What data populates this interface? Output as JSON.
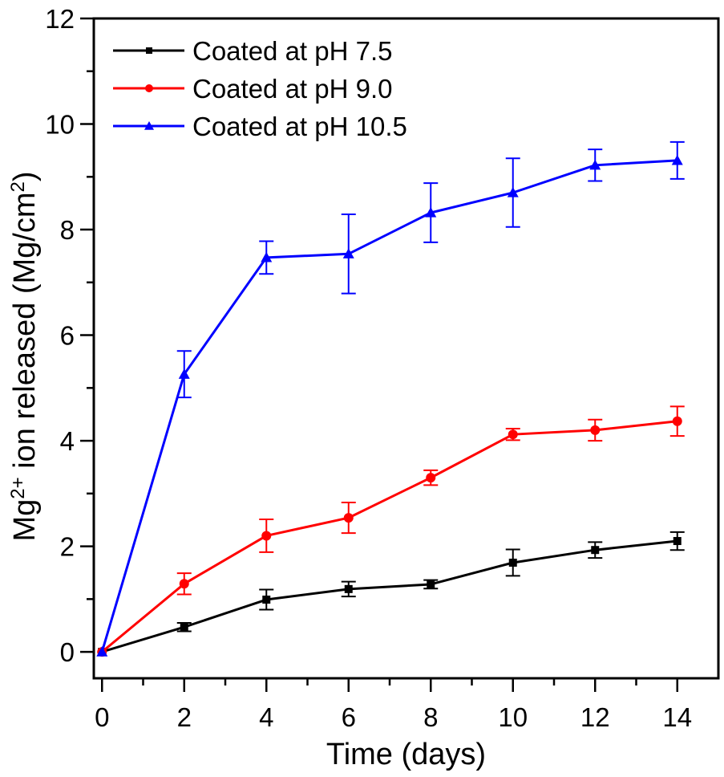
{
  "chart_data": {
    "type": "line",
    "title": "",
    "xlabel": "Time (days)",
    "ylabel": {
      "prefix": "Mg",
      "sup1": "2+",
      "middle": " ion released (Mg/cm",
      "sup2": "2",
      "suffix": ")"
    },
    "xlim": [
      -0.2,
      15
    ],
    "ylim": [
      -0.5,
      12
    ],
    "xticks": [
      0,
      2,
      4,
      6,
      8,
      10,
      12,
      14
    ],
    "xtick_labels": [
      "0",
      "2",
      "4",
      "6",
      "8",
      "10",
      "12",
      "14"
    ],
    "xminor": [
      1,
      3,
      5,
      7,
      9,
      11,
      13
    ],
    "yticks": [
      0,
      2,
      4,
      6,
      8,
      10,
      12
    ],
    "ytick_labels": [
      "0",
      "2",
      "4",
      "6",
      "8",
      "10",
      "12"
    ],
    "yminor": [
      1,
      3,
      5,
      7,
      9,
      11
    ],
    "grid": false,
    "legend_position": "top-left",
    "x": [
      0,
      2,
      4,
      6,
      8,
      10,
      12,
      14
    ],
    "series": [
      {
        "name": "Coated at pH 7.5",
        "color": "#000000",
        "marker": "square",
        "values": [
          0,
          0.47,
          0.99,
          1.19,
          1.28,
          1.69,
          1.93,
          2.1
        ],
        "errors": [
          0,
          0.08,
          0.19,
          0.14,
          0.08,
          0.25,
          0.15,
          0.17
        ]
      },
      {
        "name": "Coated at pH 9.0",
        "color": "#ff0000",
        "marker": "circle",
        "values": [
          0,
          1.29,
          2.2,
          2.54,
          3.3,
          4.12,
          4.2,
          4.37
        ],
        "errors": [
          0,
          0.2,
          0.31,
          0.29,
          0.14,
          0.11,
          0.2,
          0.28
        ]
      },
      {
        "name": "Coated at pH 10.5",
        "color": "#0000ff",
        "marker": "triangle",
        "values": [
          0,
          5.26,
          7.47,
          7.54,
          8.32,
          8.7,
          9.22,
          9.31
        ],
        "errors": [
          0,
          0.44,
          0.31,
          0.75,
          0.56,
          0.65,
          0.3,
          0.35
        ]
      }
    ]
  }
}
